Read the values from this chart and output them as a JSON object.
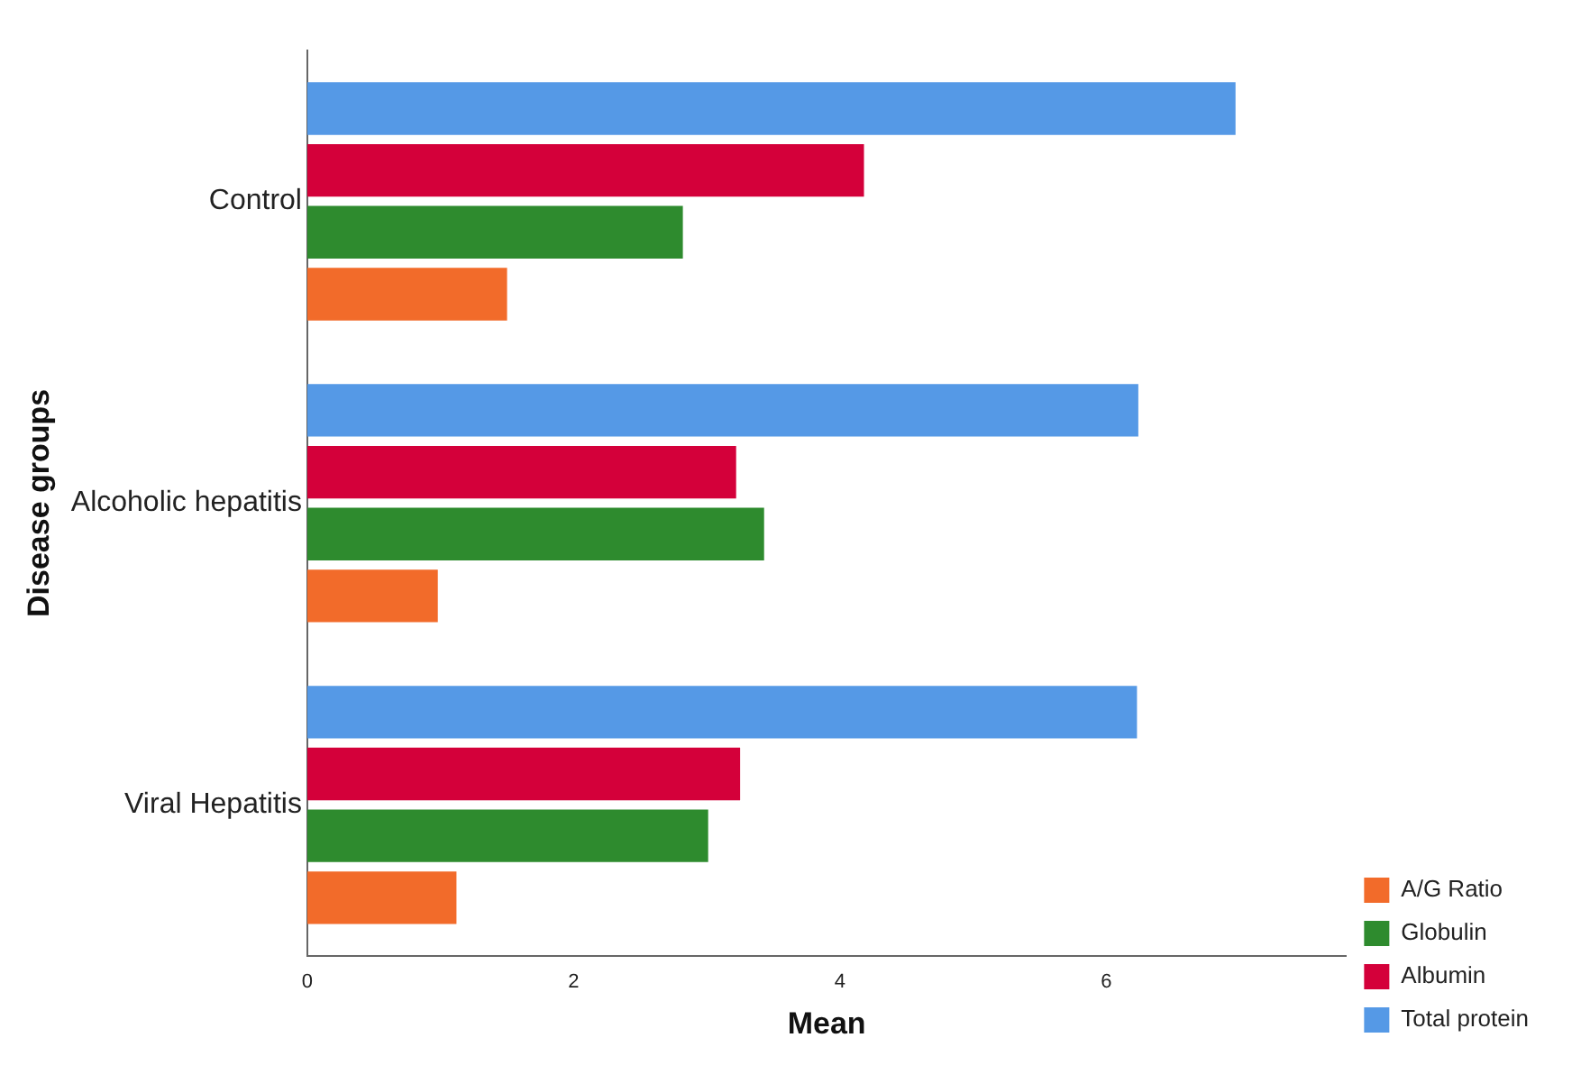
{
  "chart_data": {
    "type": "bar",
    "orientation": "horizontal",
    "xlabel": "Mean",
    "ylabel": "Disease groups",
    "categories": [
      "Control",
      "Alcoholic hepatitis",
      "Viral Hepatitis"
    ],
    "series": [
      {
        "name": "Total protein",
        "color": "#5599e6",
        "values": [
          6.97,
          6.24,
          6.23
        ]
      },
      {
        "name": "Albumin",
        "color": "#d4003a",
        "values": [
          4.18,
          3.22,
          3.25
        ]
      },
      {
        "name": "Globulin",
        "color": "#2e8b2e",
        "values": [
          2.82,
          3.43,
          3.01
        ]
      },
      {
        "name": "A/G Ratio",
        "color": "#f26b2a",
        "values": [
          1.5,
          0.98,
          1.12
        ]
      }
    ],
    "xlim": [
      0,
      7.8
    ],
    "xticks": [
      0,
      2,
      4,
      6
    ],
    "grid": false,
    "legend": "bottom right"
  }
}
